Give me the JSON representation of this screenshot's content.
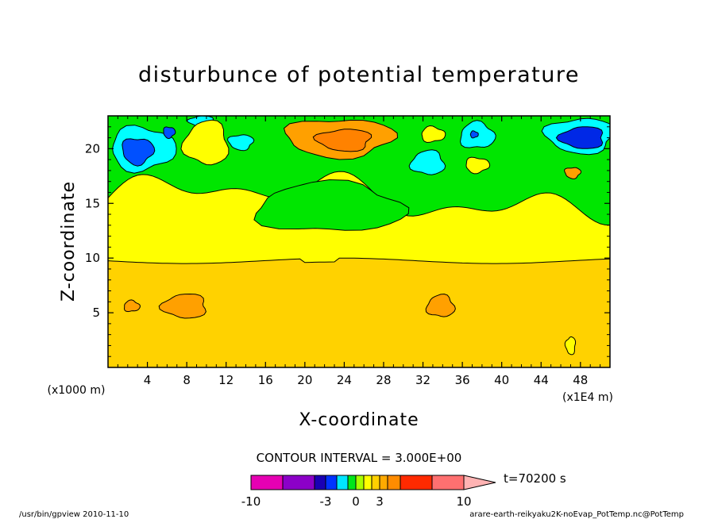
{
  "chart_data": {
    "type": "heatmap",
    "title": "disturbunce of potential temperature",
    "xlabel": "X-coordinate",
    "ylabel": "Z-coordinate",
    "x_unit": "(x1000 m)",
    "x_scale_note": "(x1E4 m)",
    "xlim": [
      0,
      51
    ],
    "ylim": [
      0,
      23
    ],
    "x_ticks": [
      "4",
      "8",
      "12",
      "16",
      "20",
      "24",
      "28",
      "32",
      "36",
      "40",
      "44",
      "48"
    ],
    "y_ticks": [
      "5",
      "10",
      "15",
      "20"
    ],
    "contour_interval": "CONTOUR INTERVAL = 3.000E+00",
    "colorbar": {
      "labels": [
        "-10",
        "-3",
        "0",
        "3",
        "10"
      ],
      "colors": [
        "#e600b3",
        "#8c00c8",
        "#1a00b4",
        "#0033ff",
        "#00e5ff",
        "#00e61a",
        "#a8ff00",
        "#ffff00",
        "#ffd100",
        "#ffaa00",
        "#ff8c00",
        "#ff2a00",
        "#ff7070",
        "#ffb3b3"
      ],
      "time_label": "t=70200 s"
    },
    "levels": {
      "green": "#00e600",
      "lightyellow": "#ffff00",
      "yellow": "#ffd200",
      "orange": "#ffa000",
      "darkorange": "#ff8200",
      "cyan": "#00ffff",
      "blue": "#0050ff",
      "darkblue": "#0028e6"
    },
    "regions": [
      {
        "level": "green",
        "shape": "upper-band",
        "z_range": [
          15,
          23
        ]
      },
      {
        "level": "lightyellow",
        "shape": "middle-band",
        "z_range": [
          9.7,
          15.5
        ]
      },
      {
        "level": "yellow",
        "shape": "lower-band",
        "z_range": [
          0,
          9.8
        ]
      },
      {
        "level": "orange",
        "shape": "blob",
        "center": [
          23.5,
          21
        ],
        "size": [
          11,
          3.5
        ]
      },
      {
        "level": "darkorange",
        "shape": "blob",
        "center": [
          24,
          20.8
        ],
        "size": [
          5.5,
          2
        ]
      },
      {
        "level": "orange",
        "shape": "blob",
        "center": [
          7.8,
          5.6
        ],
        "size": [
          4.5,
          2.2
        ]
      },
      {
        "level": "orange",
        "shape": "blob",
        "center": [
          33.8,
          5.6
        ],
        "size": [
          2.8,
          2
        ]
      },
      {
        "level": "orange",
        "shape": "blob",
        "center": [
          2.4,
          5.6
        ],
        "size": [
          1.6,
          1
        ]
      },
      {
        "level": "cyan",
        "shape": "blob",
        "center": [
          3.5,
          20
        ],
        "size": [
          6.5,
          4
        ]
      },
      {
        "level": "blue",
        "shape": "blob",
        "center": [
          3,
          19.8
        ],
        "size": [
          3.2,
          2.4
        ]
      },
      {
        "level": "cyan",
        "shape": "blob",
        "center": [
          48,
          21.2
        ],
        "size": [
          7,
          3.2
        ]
      },
      {
        "level": "darkblue",
        "shape": "blob",
        "center": [
          48.2,
          21
        ],
        "size": [
          4.5,
          2
        ]
      },
      {
        "level": "cyan",
        "shape": "blob",
        "center": [
          32.5,
          18.7
        ],
        "size": [
          3.4,
          2.2
        ]
      },
      {
        "level": "cyan",
        "shape": "blob",
        "center": [
          37.5,
          21.2
        ],
        "size": [
          3.5,
          2.4
        ]
      },
      {
        "level": "blue",
        "shape": "blob",
        "center": [
          37.2,
          21.3
        ],
        "size": [
          0.8,
          0.6
        ]
      },
      {
        "level": "blue",
        "shape": "blob",
        "center": [
          6.2,
          21.5
        ],
        "size": [
          1.2,
          1
        ]
      },
      {
        "level": "cyan",
        "shape": "blob",
        "center": [
          13.5,
          20.6
        ],
        "size": [
          2.5,
          1.4
        ]
      },
      {
        "level": "cyan",
        "shape": "blob",
        "center": [
          9.5,
          22.5
        ],
        "size": [
          2.5,
          1
        ]
      },
      {
        "level": "lightyellow",
        "shape": "blob",
        "center": [
          10,
          20.5
        ],
        "size": [
          4.5,
          4
        ]
      },
      {
        "level": "green",
        "shape": "blob",
        "center": [
          22.5,
          14.6
        ],
        "size": [
          15,
          4.5
        ]
      },
      {
        "level": "lightyellow",
        "shape": "blob",
        "center": [
          33,
          21.3
        ],
        "size": [
          2.4,
          1.4
        ]
      },
      {
        "level": "lightyellow",
        "shape": "blob",
        "center": [
          37.5,
          18.5
        ],
        "size": [
          2.4,
          1.4
        ]
      },
      {
        "level": "orange",
        "shape": "blob",
        "center": [
          47.2,
          17.8
        ],
        "size": [
          1.6,
          1
        ]
      },
      {
        "level": "lightyellow",
        "shape": "blob",
        "center": [
          47,
          2
        ],
        "size": [
          1,
          1.6
        ]
      }
    ]
  },
  "footer": {
    "left": "/usr/bin/gpview  2010-11-10",
    "right": "arare-earth-reikyaku2K-noEvap_PotTemp.nc@PotTemp"
  }
}
